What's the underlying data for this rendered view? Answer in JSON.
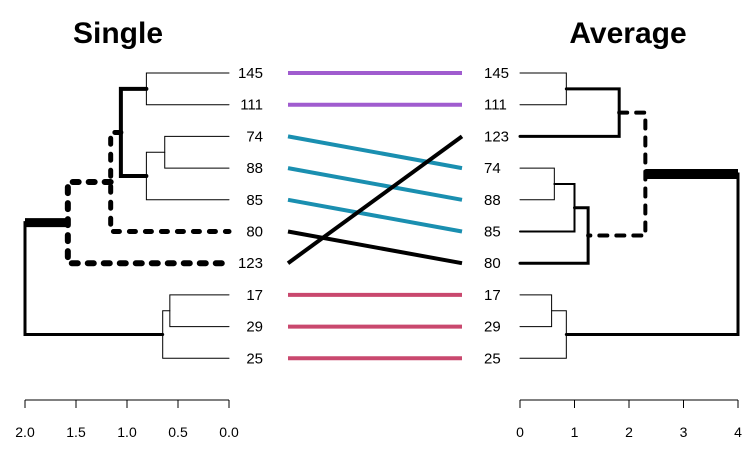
{
  "chart_data": {
    "type": "tanglegram",
    "left": {
      "title": "Single",
      "labels": [
        "145",
        "111",
        "74",
        "88",
        "85",
        "80",
        "123",
        "17",
        "29",
        "25"
      ],
      "axis_ticks": [
        "2.0",
        "1.5",
        "1.0",
        "0.5",
        "0.0"
      ],
      "xlim": [
        2.0,
        0.0
      ],
      "merges": [
        {
          "a": "74",
          "b": "88",
          "height": 0.63
        },
        {
          "a": "17",
          "b": "29",
          "height": 0.58
        },
        {
          "a": "145",
          "b": "111",
          "height": 0.81
        },
        {
          "a": "(74,88)",
          "b": "85",
          "height": 0.81
        },
        {
          "a": "(17,29)",
          "b": "25",
          "height": 0.65
        },
        {
          "a": "(145,111)",
          "b": "(74,88,85)",
          "height": 1.06
        },
        {
          "a": "(145..85)",
          "b": "80",
          "height": 1.16
        },
        {
          "a": "(145..80)",
          "b": "123",
          "height": 1.58
        },
        {
          "a": "(145..123)",
          "b": "(17,29,25)",
          "height": 2.0
        }
      ]
    },
    "right": {
      "title": "Average",
      "labels": [
        "145",
        "111",
        "123",
        "74",
        "88",
        "85",
        "80",
        "17",
        "29",
        "25"
      ],
      "axis_ticks": [
        "0",
        "1",
        "2",
        "3",
        "4"
      ],
      "xlim": [
        0,
        4
      ],
      "merges": [
        {
          "a": "74",
          "b": "88",
          "height": 0.63
        },
        {
          "a": "17",
          "b": "29",
          "height": 0.58
        },
        {
          "a": "145",
          "b": "111",
          "height": 0.85
        },
        {
          "a": "(74,88)",
          "b": "85",
          "height": 1.0
        },
        {
          "a": "(17,29)",
          "b": "25",
          "height": 0.85
        },
        {
          "a": "(74,88,85)",
          "b": "80",
          "height": 1.25
        },
        {
          "a": "(145,111)",
          "b": "123",
          "height": 1.82
        },
        {
          "a": "(145,111,123)",
          "b": "(74,88,85,80)",
          "height": 2.3
        },
        {
          "a": "(145..80)",
          "b": "(17,29,25)",
          "height": 4.0
        }
      ]
    },
    "connections": [
      {
        "label": "145",
        "left_index": 0,
        "right_index": 0,
        "color": "#a05ccf"
      },
      {
        "label": "111",
        "left_index": 1,
        "right_index": 1,
        "color": "#a05ccf"
      },
      {
        "label": "74",
        "left_index": 2,
        "right_index": 3,
        "color": "#1a8fb0"
      },
      {
        "label": "88",
        "left_index": 3,
        "right_index": 4,
        "color": "#1a8fb0"
      },
      {
        "label": "85",
        "left_index": 4,
        "right_index": 5,
        "color": "#1a8fb0"
      },
      {
        "label": "80",
        "left_index": 5,
        "right_index": 6,
        "color": "#000000"
      },
      {
        "label": "123",
        "left_index": 6,
        "right_index": 2,
        "color": "#000000"
      },
      {
        "label": "17",
        "left_index": 7,
        "right_index": 7,
        "color": "#c9486e"
      },
      {
        "label": "29",
        "left_index": 8,
        "right_index": 8,
        "color": "#c9486e"
      },
      {
        "label": "25",
        "left_index": 9,
        "right_index": 9,
        "color": "#c9486e"
      }
    ]
  }
}
